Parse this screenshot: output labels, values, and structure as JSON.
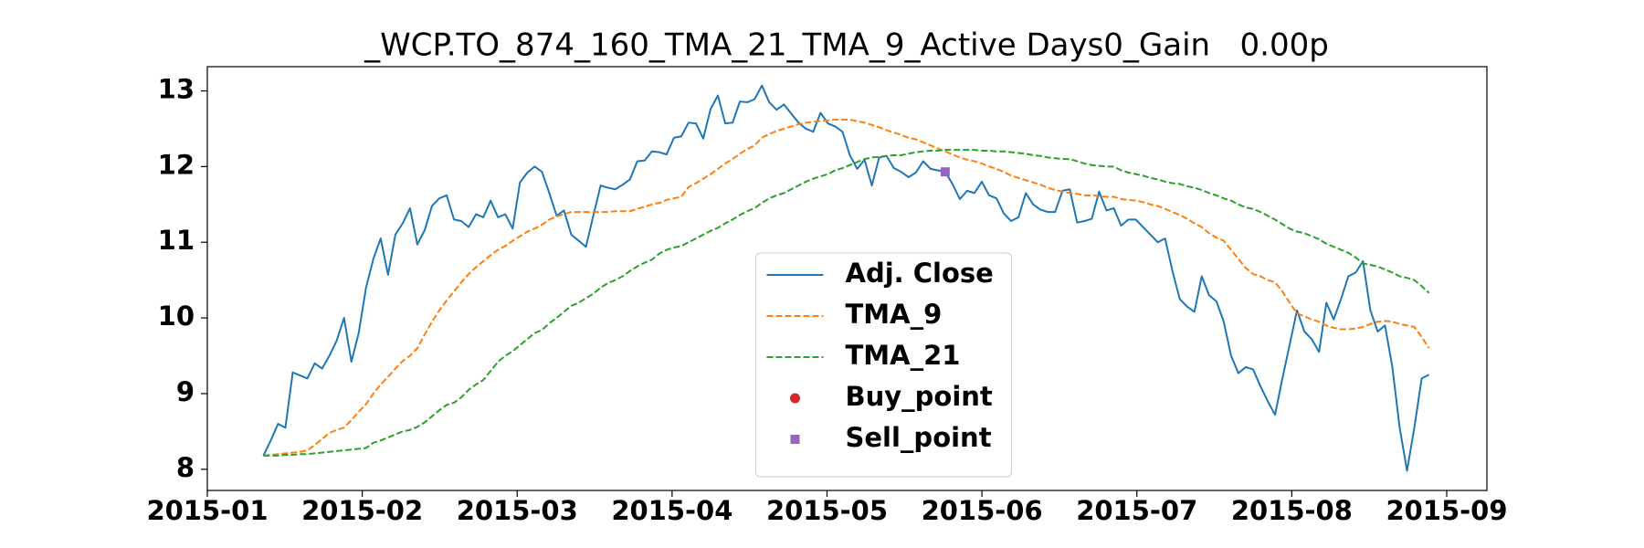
{
  "chart_data": {
    "type": "line",
    "title": "_WCP.TO_874_160_TMA_21_TMA_9_Active Days0_Gain   0.00p",
    "xticks": [
      "2015-01",
      "2015-02",
      "2015-03",
      "2015-04",
      "2015-05",
      "2015-06",
      "2015-07",
      "2015-08",
      "2015-09"
    ],
    "ylim": [
      7.72,
      13.32
    ],
    "yticks": [
      8,
      9,
      10,
      11,
      12,
      13
    ],
    "legend": "lower center",
    "series": [
      {
        "name": "Adj. Close",
        "color": "#1f77b4",
        "linestyle": "solid",
        "values": [
          8.18,
          8.38,
          8.6,
          8.55,
          9.28,
          9.24,
          9.2,
          9.4,
          9.33,
          9.5,
          9.7,
          10,
          9.42,
          9.8,
          10.4,
          10.78,
          11.05,
          10.57,
          11.1,
          11.25,
          11.45,
          10.97,
          11.16,
          11.48,
          11.58,
          11.62,
          11.3,
          11.28,
          11.2,
          11.37,
          11.33,
          11.55,
          11.33,
          11.37,
          11.18,
          11.79,
          11.92,
          12,
          11.93,
          11.65,
          11.35,
          11.42,
          11.1,
          11.02,
          10.94,
          11.35,
          11.75,
          11.72,
          11.7,
          11.76,
          11.83,
          12.07,
          12.08,
          12.2,
          12.19,
          12.16,
          12.38,
          12.4,
          12.58,
          12.57,
          12.37,
          12.76,
          12.94,
          12.57,
          12.58,
          12.86,
          12.85,
          12.89,
          13.07,
          12.85,
          12.75,
          12.82,
          12.7,
          12.58,
          12.5,
          12.46,
          12.71,
          12.57,
          12.53,
          12.46,
          12.15,
          11.97,
          12.09,
          11.75,
          12.12,
          12.14,
          11.98,
          11.93,
          11.86,
          11.92,
          12.07,
          11.97,
          11.95,
          11.93,
          11.77,
          11.57,
          11.68,
          11.65,
          11.8,
          11.62,
          11.58,
          11.38,
          11.28,
          11.33,
          11.65,
          11.5,
          11.43,
          11.4,
          11.4,
          11.68,
          11.7,
          11.26,
          11.28,
          11.31,
          11.67,
          11.42,
          11.45,
          11.22,
          11.3,
          11.3,
          11.2,
          11.1,
          11,
          11.05,
          10.62,
          10.25,
          10.15,
          10.08,
          10.55,
          10.3,
          10.22,
          9.95,
          9.5,
          9.27,
          9.35,
          9.32,
          9.1,
          8.9,
          8.72,
          9.2,
          9.65,
          10.1,
          9.82,
          9.72,
          9.55,
          10.2,
          9.98,
          10.25,
          10.55,
          10.6,
          10.75,
          10.1,
          9.82,
          9.9,
          9.35,
          8.55,
          7.98,
          8.55,
          9.2,
          9.25
        ]
      },
      {
        "name": "TMA_9",
        "color": "#ff7f0e",
        "linestyle": "dashed",
        "values": [
          8.18,
          8.19,
          8.2,
          8.21,
          8.22,
          8.23,
          8.25,
          8.32,
          8.4,
          8.48,
          8.52,
          8.55,
          8.65,
          8.76,
          8.86,
          9,
          9.12,
          9.22,
          9.33,
          9.43,
          9.5,
          9.6,
          9.78,
          9.95,
          10.1,
          10.23,
          10.35,
          10.47,
          10.58,
          10.67,
          10.75,
          10.83,
          10.9,
          10.95,
          11.02,
          11.08,
          11.14,
          11.18,
          11.23,
          11.3,
          11.34,
          11.37,
          11.4,
          11.4,
          11.4,
          11.4,
          11.4,
          11.4,
          11.41,
          11.41,
          11.41,
          11.44,
          11.47,
          11.5,
          11.52,
          11.56,
          11.58,
          11.6,
          11.73,
          11.78,
          11.84,
          11.9,
          11.97,
          12.04,
          12.1,
          12.17,
          12.23,
          12.28,
          12.38,
          12.43,
          12.47,
          12.5,
          12.53,
          12.56,
          12.58,
          12.59,
          12.6,
          12.61,
          12.62,
          12.62,
          12.62,
          12.6,
          12.58,
          12.55,
          12.52,
          12.48,
          12.45,
          12.42,
          12.38,
          12.36,
          12.32,
          12.28,
          12.24,
          12.2,
          12.16,
          12.12,
          12.09,
          12.07,
          12.04,
          12,
          11.97,
          11.93,
          11.88,
          11.85,
          11.82,
          11.79,
          11.76,
          11.72,
          11.69,
          11.67,
          11.65,
          11.64,
          11.62,
          11.62,
          11.61,
          11.6,
          11.6,
          11.57,
          11.56,
          11.55,
          11.53,
          11.5,
          11.48,
          11.44,
          11.4,
          11.36,
          11.31,
          11.25,
          11.2,
          11.12,
          11.06,
          11.02,
          10.9,
          10.78,
          10.66,
          10.58,
          10.55,
          10.5,
          10.47,
          10.35,
          10.2,
          10.06,
          10.02,
          9.98,
          9.95,
          9.9,
          9.87,
          9.85,
          9.85,
          9.86,
          9.88,
          9.92,
          9.95,
          9.96,
          9.95,
          9.92,
          9.9,
          9.88,
          9.75,
          9.6
        ]
      },
      {
        "name": "TMA_21",
        "color": "#2ca02c",
        "linestyle": "dashed",
        "values": [
          8.18,
          8.18,
          8.18,
          8.19,
          8.19,
          8.2,
          8.2,
          8.21,
          8.22,
          8.23,
          8.24,
          8.25,
          8.26,
          8.27,
          8.28,
          8.35,
          8.38,
          8.42,
          8.46,
          8.5,
          8.52,
          8.56,
          8.62,
          8.7,
          8.78,
          8.85,
          8.88,
          8.95,
          9.05,
          9.12,
          9.18,
          9.3,
          9.42,
          9.5,
          9.56,
          9.64,
          9.72,
          9.8,
          9.84,
          9.93,
          10,
          10.08,
          10.16,
          10.2,
          10.26,
          10.32,
          10.4,
          10.46,
          10.5,
          10.55,
          10.62,
          10.68,
          10.73,
          10.77,
          10.85,
          10.9,
          10.93,
          10.95,
          11,
          11.05,
          11.1,
          11.15,
          11.19,
          11.25,
          11.3,
          11.36,
          11.41,
          11.45,
          11.52,
          11.58,
          11.62,
          11.65,
          11.7,
          11.75,
          11.8,
          11.84,
          11.87,
          11.9,
          11.95,
          11.98,
          12.02,
          12.06,
          12.1,
          12.12,
          12.13,
          12.14,
          12.15,
          12.15,
          12.17,
          12.19,
          12.2,
          12.21,
          12.21,
          12.22,
          12.22,
          12.22,
          12.22,
          12.22,
          12.21,
          12.21,
          12.2,
          12.2,
          12.19,
          12.18,
          12.17,
          12.15,
          12.14,
          12.12,
          12.11,
          12.1,
          12.1,
          12.07,
          12.04,
          12.02,
          12.01,
          12,
          12,
          11.95,
          11.92,
          11.9,
          11.88,
          11.85,
          11.83,
          11.8,
          11.78,
          11.77,
          11.74,
          11.72,
          11.69,
          11.65,
          11.62,
          11.58,
          11.55,
          11.5,
          11.46,
          11.44,
          11.4,
          11.35,
          11.3,
          11.24,
          11.18,
          11.14,
          11.12,
          11.08,
          11.04,
          10.98,
          10.94,
          10.9,
          10.86,
          10.8,
          10.72,
          10.7,
          10.68,
          10.64,
          10.6,
          10.55,
          10.53,
          10.5,
          10.42,
          10.33
        ]
      },
      {
        "name": "Buy_point",
        "color": "#d62728",
        "marker": "circle",
        "values": [
          null,
          null,
          null,
          null,
          null,
          null,
          null,
          null,
          null,
          null,
          null,
          null,
          null,
          null,
          null,
          null,
          null,
          null,
          null,
          null,
          null,
          null,
          null,
          null,
          null,
          null,
          null,
          null,
          null,
          null,
          null,
          null,
          null,
          null,
          null,
          null,
          null,
          null,
          null,
          null,
          null,
          null,
          null,
          null,
          null,
          null,
          null,
          null,
          null,
          null,
          null,
          null,
          null,
          null,
          null,
          null,
          null,
          null,
          null,
          null,
          null,
          null,
          null,
          null,
          null,
          null,
          null,
          null,
          null,
          null,
          null,
          null,
          null,
          null,
          null,
          null,
          null,
          null,
          null,
          null,
          null,
          null,
          null,
          null,
          null,
          null,
          null,
          null,
          null,
          null,
          null,
          null,
          null,
          null,
          null,
          null,
          null,
          null,
          null,
          null,
          null,
          null,
          null,
          null,
          null,
          null,
          null,
          null,
          null,
          null,
          null,
          null,
          null,
          null,
          null,
          null,
          null,
          null,
          null,
          null,
          null,
          null,
          null,
          null,
          null,
          null,
          null,
          null,
          null,
          null,
          null,
          null,
          null,
          null,
          null,
          null,
          null,
          null,
          null,
          null,
          null,
          null,
          null,
          null,
          null,
          null,
          null,
          null,
          null,
          null,
          null,
          null,
          null,
          null,
          null,
          null,
          null,
          null,
          null,
          null
        ]
      },
      {
        "name": "Sell_point",
        "color": "#9467bd",
        "marker": "square",
        "values": [
          null,
          null,
          null,
          null,
          null,
          null,
          null,
          null,
          null,
          null,
          null,
          null,
          null,
          null,
          null,
          null,
          null,
          null,
          null,
          null,
          null,
          null,
          null,
          null,
          null,
          null,
          null,
          null,
          null,
          null,
          null,
          null,
          null,
          null,
          null,
          null,
          null,
          null,
          null,
          null,
          null,
          null,
          null,
          null,
          null,
          null,
          null,
          null,
          null,
          null,
          null,
          null,
          null,
          null,
          null,
          null,
          null,
          null,
          null,
          null,
          null,
          null,
          null,
          null,
          null,
          null,
          null,
          null,
          null,
          null,
          null,
          null,
          null,
          null,
          null,
          null,
          null,
          null,
          null,
          null,
          null,
          null,
          null,
          null,
          null,
          null,
          null,
          null,
          null,
          null,
          null,
          null,
          null,
          11.93,
          null,
          null,
          null,
          null,
          null,
          null,
          null,
          null,
          null,
          null,
          null,
          null,
          null,
          null,
          null,
          null,
          null,
          null,
          null,
          null,
          null,
          null,
          null,
          null,
          null,
          null,
          null,
          null,
          null,
          null,
          null,
          null,
          null,
          null,
          null,
          null,
          null,
          null,
          null,
          null,
          null,
          null,
          null,
          null,
          null,
          null,
          null,
          null,
          null,
          null,
          null,
          null,
          null,
          null,
          null,
          null,
          null,
          null,
          null,
          null,
          null,
          null,
          null,
          null,
          null,
          null
        ]
      }
    ]
  }
}
